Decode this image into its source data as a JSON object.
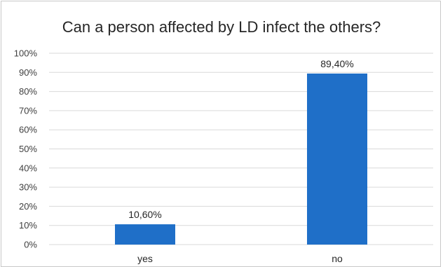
{
  "chart_data": {
    "type": "bar",
    "title": "Can a person affected by LD infect the others?",
    "categories": [
      "yes",
      "no"
    ],
    "values": [
      10.6,
      89.4
    ],
    "data_labels": [
      "10,60%",
      "89,40%"
    ],
    "y_ticks": [
      "0%",
      "10%",
      "20%",
      "30%",
      "40%",
      "50%",
      "60%",
      "70%",
      "80%",
      "90%",
      "100%"
    ],
    "ylim": [
      0,
      100
    ],
    "grid": true,
    "legend": "none",
    "bar_color": "#1f6fc8",
    "grid_color": "#d9d9d9"
  }
}
